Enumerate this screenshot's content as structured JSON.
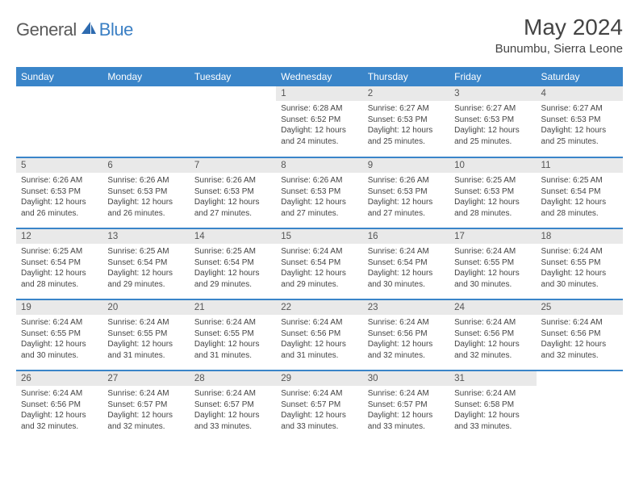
{
  "logo": {
    "general": "General",
    "blue": "Blue"
  },
  "header": {
    "title": "May 2024",
    "location": "Bunumbu, Sierra Leone"
  },
  "colors": {
    "accent": "#3a85c9",
    "daybar": "#e9e9e9",
    "text": "#444444"
  },
  "weekdays": [
    "Sunday",
    "Monday",
    "Tuesday",
    "Wednesday",
    "Thursday",
    "Friday",
    "Saturday"
  ],
  "weeks": [
    [
      {
        "n": "",
        "sr": "",
        "ss": "",
        "dl": ""
      },
      {
        "n": "",
        "sr": "",
        "ss": "",
        "dl": ""
      },
      {
        "n": "",
        "sr": "",
        "ss": "",
        "dl": ""
      },
      {
        "n": "1",
        "sr": "Sunrise: 6:28 AM",
        "ss": "Sunset: 6:52 PM",
        "dl": "Daylight: 12 hours and 24 minutes."
      },
      {
        "n": "2",
        "sr": "Sunrise: 6:27 AM",
        "ss": "Sunset: 6:53 PM",
        "dl": "Daylight: 12 hours and 25 minutes."
      },
      {
        "n": "3",
        "sr": "Sunrise: 6:27 AM",
        "ss": "Sunset: 6:53 PM",
        "dl": "Daylight: 12 hours and 25 minutes."
      },
      {
        "n": "4",
        "sr": "Sunrise: 6:27 AM",
        "ss": "Sunset: 6:53 PM",
        "dl": "Daylight: 12 hours and 25 minutes."
      }
    ],
    [
      {
        "n": "5",
        "sr": "Sunrise: 6:26 AM",
        "ss": "Sunset: 6:53 PM",
        "dl": "Daylight: 12 hours and 26 minutes."
      },
      {
        "n": "6",
        "sr": "Sunrise: 6:26 AM",
        "ss": "Sunset: 6:53 PM",
        "dl": "Daylight: 12 hours and 26 minutes."
      },
      {
        "n": "7",
        "sr": "Sunrise: 6:26 AM",
        "ss": "Sunset: 6:53 PM",
        "dl": "Daylight: 12 hours and 27 minutes."
      },
      {
        "n": "8",
        "sr": "Sunrise: 6:26 AM",
        "ss": "Sunset: 6:53 PM",
        "dl": "Daylight: 12 hours and 27 minutes."
      },
      {
        "n": "9",
        "sr": "Sunrise: 6:26 AM",
        "ss": "Sunset: 6:53 PM",
        "dl": "Daylight: 12 hours and 27 minutes."
      },
      {
        "n": "10",
        "sr": "Sunrise: 6:25 AM",
        "ss": "Sunset: 6:53 PM",
        "dl": "Daylight: 12 hours and 28 minutes."
      },
      {
        "n": "11",
        "sr": "Sunrise: 6:25 AM",
        "ss": "Sunset: 6:54 PM",
        "dl": "Daylight: 12 hours and 28 minutes."
      }
    ],
    [
      {
        "n": "12",
        "sr": "Sunrise: 6:25 AM",
        "ss": "Sunset: 6:54 PM",
        "dl": "Daylight: 12 hours and 28 minutes."
      },
      {
        "n": "13",
        "sr": "Sunrise: 6:25 AM",
        "ss": "Sunset: 6:54 PM",
        "dl": "Daylight: 12 hours and 29 minutes."
      },
      {
        "n": "14",
        "sr": "Sunrise: 6:25 AM",
        "ss": "Sunset: 6:54 PM",
        "dl": "Daylight: 12 hours and 29 minutes."
      },
      {
        "n": "15",
        "sr": "Sunrise: 6:24 AM",
        "ss": "Sunset: 6:54 PM",
        "dl": "Daylight: 12 hours and 29 minutes."
      },
      {
        "n": "16",
        "sr": "Sunrise: 6:24 AM",
        "ss": "Sunset: 6:54 PM",
        "dl": "Daylight: 12 hours and 30 minutes."
      },
      {
        "n": "17",
        "sr": "Sunrise: 6:24 AM",
        "ss": "Sunset: 6:55 PM",
        "dl": "Daylight: 12 hours and 30 minutes."
      },
      {
        "n": "18",
        "sr": "Sunrise: 6:24 AM",
        "ss": "Sunset: 6:55 PM",
        "dl": "Daylight: 12 hours and 30 minutes."
      }
    ],
    [
      {
        "n": "19",
        "sr": "Sunrise: 6:24 AM",
        "ss": "Sunset: 6:55 PM",
        "dl": "Daylight: 12 hours and 30 minutes."
      },
      {
        "n": "20",
        "sr": "Sunrise: 6:24 AM",
        "ss": "Sunset: 6:55 PM",
        "dl": "Daylight: 12 hours and 31 minutes."
      },
      {
        "n": "21",
        "sr": "Sunrise: 6:24 AM",
        "ss": "Sunset: 6:55 PM",
        "dl": "Daylight: 12 hours and 31 minutes."
      },
      {
        "n": "22",
        "sr": "Sunrise: 6:24 AM",
        "ss": "Sunset: 6:56 PM",
        "dl": "Daylight: 12 hours and 31 minutes."
      },
      {
        "n": "23",
        "sr": "Sunrise: 6:24 AM",
        "ss": "Sunset: 6:56 PM",
        "dl": "Daylight: 12 hours and 32 minutes."
      },
      {
        "n": "24",
        "sr": "Sunrise: 6:24 AM",
        "ss": "Sunset: 6:56 PM",
        "dl": "Daylight: 12 hours and 32 minutes."
      },
      {
        "n": "25",
        "sr": "Sunrise: 6:24 AM",
        "ss": "Sunset: 6:56 PM",
        "dl": "Daylight: 12 hours and 32 minutes."
      }
    ],
    [
      {
        "n": "26",
        "sr": "Sunrise: 6:24 AM",
        "ss": "Sunset: 6:56 PM",
        "dl": "Daylight: 12 hours and 32 minutes."
      },
      {
        "n": "27",
        "sr": "Sunrise: 6:24 AM",
        "ss": "Sunset: 6:57 PM",
        "dl": "Daylight: 12 hours and 32 minutes."
      },
      {
        "n": "28",
        "sr": "Sunrise: 6:24 AM",
        "ss": "Sunset: 6:57 PM",
        "dl": "Daylight: 12 hours and 33 minutes."
      },
      {
        "n": "29",
        "sr": "Sunrise: 6:24 AM",
        "ss": "Sunset: 6:57 PM",
        "dl": "Daylight: 12 hours and 33 minutes."
      },
      {
        "n": "30",
        "sr": "Sunrise: 6:24 AM",
        "ss": "Sunset: 6:57 PM",
        "dl": "Daylight: 12 hours and 33 minutes."
      },
      {
        "n": "31",
        "sr": "Sunrise: 6:24 AM",
        "ss": "Sunset: 6:58 PM",
        "dl": "Daylight: 12 hours and 33 minutes."
      },
      {
        "n": "",
        "sr": "",
        "ss": "",
        "dl": ""
      }
    ]
  ]
}
